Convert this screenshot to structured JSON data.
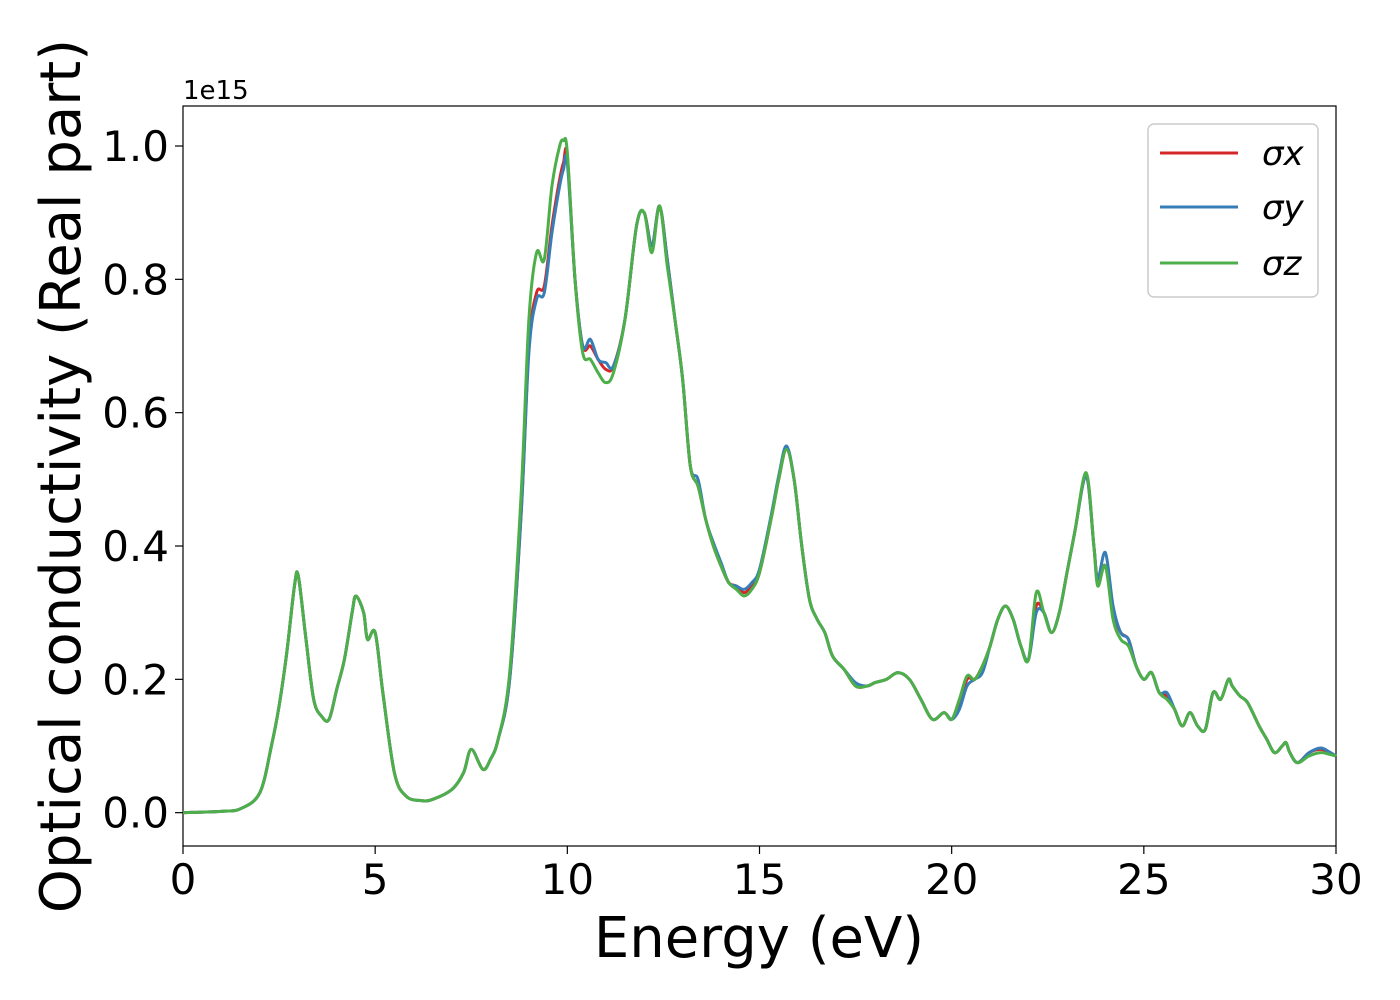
{
  "chart_data": {
    "type": "line",
    "xlabel": "Energy (eV)",
    "ylabel": "Optical conductivity (Real part)",
    "offset_text": "1e15",
    "xlim": [
      0,
      30
    ],
    "ylim": [
      -0.05,
      1.06
    ],
    "xticks": [
      0,
      5,
      10,
      15,
      20,
      25,
      30
    ],
    "yticks": [
      0.0,
      0.2,
      0.4,
      0.6,
      0.8,
      1.0
    ],
    "xtick_labels": [
      "0",
      "5",
      "10",
      "15",
      "20",
      "25",
      "30"
    ],
    "ytick_labels": [
      "0.0",
      "0.2",
      "0.4",
      "0.6",
      "0.8",
      "1.0"
    ],
    "legend_position": "top-right",
    "grid": false,
    "x": [
      0,
      1,
      1.5,
      2,
      2.3,
      2.5,
      2.7,
      2.9,
      3.0,
      3.2,
      3.4,
      3.6,
      3.8,
      4.0,
      4.2,
      4.4,
      4.5,
      4.7,
      4.8,
      5.0,
      5.2,
      5.5,
      5.8,
      6.2,
      6.5,
      7.0,
      7.3,
      7.5,
      7.8,
      8.0,
      8.2,
      8.5,
      8.8,
      9.0,
      9.2,
      9.4,
      9.6,
      9.8,
      9.9,
      10.0,
      10.2,
      10.4,
      10.6,
      10.8,
      11.0,
      11.2,
      11.5,
      11.8,
      12.0,
      12.2,
      12.4,
      12.6,
      12.8,
      13.0,
      13.2,
      13.4,
      13.6,
      13.8,
      14.0,
      14.2,
      14.4,
      14.6,
      14.8,
      15.0,
      15.3,
      15.5,
      15.7,
      15.9,
      16.1,
      16.3,
      16.5,
      16.7,
      16.9,
      17.2,
      17.5,
      17.8,
      18.0,
      18.3,
      18.6,
      18.9,
      19.2,
      19.5,
      19.8,
      20.0,
      20.2,
      20.4,
      20.6,
      20.8,
      21.0,
      21.2,
      21.4,
      21.6,
      21.8,
      22.0,
      22.2,
      22.4,
      22.6,
      22.8,
      23.0,
      23.2,
      23.5,
      23.7,
      23.8,
      24.0,
      24.2,
      24.4,
      24.6,
      24.8,
      25.0,
      25.2,
      25.4,
      25.6,
      25.8,
      26.0,
      26.2,
      26.4,
      26.6,
      26.8,
      27.0,
      27.2,
      27.3,
      27.5,
      27.7,
      28.0,
      28.2,
      28.4,
      28.6,
      28.7,
      28.8,
      29.0,
      29.3,
      29.6,
      29.8,
      30.0
    ],
    "series": [
      {
        "name": "σx",
        "color": "#d62728",
        "values": [
          0.0,
          0.002,
          0.006,
          0.03,
          0.1,
          0.16,
          0.24,
          0.34,
          0.355,
          0.26,
          0.17,
          0.145,
          0.14,
          0.185,
          0.23,
          0.3,
          0.325,
          0.3,
          0.26,
          0.27,
          0.18,
          0.06,
          0.025,
          0.018,
          0.02,
          0.035,
          0.06,
          0.095,
          0.065,
          0.08,
          0.11,
          0.2,
          0.45,
          0.7,
          0.78,
          0.79,
          0.88,
          0.95,
          0.975,
          0.985,
          0.8,
          0.7,
          0.7,
          0.68,
          0.665,
          0.67,
          0.74,
          0.88,
          0.9,
          0.85,
          0.91,
          0.83,
          0.74,
          0.65,
          0.52,
          0.49,
          0.44,
          0.4,
          0.37,
          0.345,
          0.34,
          0.33,
          0.34,
          0.36,
          0.44,
          0.5,
          0.545,
          0.5,
          0.4,
          0.32,
          0.29,
          0.27,
          0.235,
          0.215,
          0.19,
          0.19,
          0.195,
          0.2,
          0.21,
          0.2,
          0.17,
          0.14,
          0.15,
          0.14,
          0.16,
          0.2,
          0.2,
          0.22,
          0.25,
          0.29,
          0.31,
          0.29,
          0.25,
          0.23,
          0.31,
          0.3,
          0.27,
          0.3,
          0.36,
          0.42,
          0.505,
          0.4,
          0.35,
          0.37,
          0.3,
          0.27,
          0.26,
          0.22,
          0.2,
          0.21,
          0.18,
          0.175,
          0.155,
          0.13,
          0.15,
          0.13,
          0.125,
          0.18,
          0.17,
          0.2,
          0.19,
          0.175,
          0.165,
          0.13,
          0.11,
          0.09,
          0.1,
          0.105,
          0.09,
          0.075,
          0.09,
          0.095,
          0.09,
          0.085
        ]
      },
      {
        "name": "σy",
        "color": "#377eb8",
        "values": [
          0.0,
          0.002,
          0.006,
          0.03,
          0.1,
          0.16,
          0.24,
          0.34,
          0.355,
          0.26,
          0.17,
          0.145,
          0.14,
          0.185,
          0.23,
          0.3,
          0.325,
          0.3,
          0.26,
          0.27,
          0.18,
          0.06,
          0.025,
          0.018,
          0.02,
          0.035,
          0.06,
          0.095,
          0.065,
          0.08,
          0.11,
          0.2,
          0.45,
          0.69,
          0.77,
          0.78,
          0.87,
          0.94,
          0.965,
          0.975,
          0.8,
          0.7,
          0.71,
          0.68,
          0.675,
          0.67,
          0.74,
          0.88,
          0.9,
          0.85,
          0.91,
          0.83,
          0.74,
          0.65,
          0.52,
          0.5,
          0.44,
          0.405,
          0.375,
          0.345,
          0.34,
          0.335,
          0.345,
          0.365,
          0.445,
          0.505,
          0.55,
          0.5,
          0.4,
          0.32,
          0.29,
          0.27,
          0.235,
          0.215,
          0.195,
          0.19,
          0.195,
          0.2,
          0.21,
          0.2,
          0.17,
          0.14,
          0.15,
          0.14,
          0.155,
          0.19,
          0.2,
          0.21,
          0.25,
          0.29,
          0.31,
          0.29,
          0.25,
          0.23,
          0.3,
          0.3,
          0.27,
          0.3,
          0.36,
          0.42,
          0.505,
          0.4,
          0.35,
          0.39,
          0.31,
          0.27,
          0.26,
          0.22,
          0.2,
          0.21,
          0.18,
          0.18,
          0.155,
          0.13,
          0.15,
          0.13,
          0.125,
          0.18,
          0.17,
          0.2,
          0.19,
          0.175,
          0.165,
          0.13,
          0.11,
          0.09,
          0.1,
          0.105,
          0.09,
          0.075,
          0.09,
          0.097,
          0.092,
          0.085
        ]
      },
      {
        "name": "σz",
        "color": "#4daf4a",
        "values": [
          0.0,
          0.002,
          0.006,
          0.03,
          0.1,
          0.16,
          0.24,
          0.34,
          0.355,
          0.26,
          0.17,
          0.145,
          0.14,
          0.185,
          0.23,
          0.3,
          0.325,
          0.3,
          0.26,
          0.27,
          0.18,
          0.06,
          0.025,
          0.018,
          0.02,
          0.035,
          0.06,
          0.095,
          0.065,
          0.08,
          0.11,
          0.21,
          0.48,
          0.74,
          0.84,
          0.83,
          0.94,
          1.0,
          1.008,
          0.99,
          0.8,
          0.69,
          0.68,
          0.66,
          0.645,
          0.66,
          0.74,
          0.88,
          0.9,
          0.84,
          0.91,
          0.82,
          0.74,
          0.65,
          0.52,
          0.49,
          0.44,
          0.4,
          0.37,
          0.345,
          0.335,
          0.325,
          0.335,
          0.36,
          0.44,
          0.5,
          0.545,
          0.5,
          0.4,
          0.32,
          0.29,
          0.27,
          0.235,
          0.215,
          0.19,
          0.19,
          0.195,
          0.2,
          0.21,
          0.2,
          0.17,
          0.14,
          0.15,
          0.14,
          0.17,
          0.205,
          0.2,
          0.22,
          0.25,
          0.29,
          0.31,
          0.29,
          0.25,
          0.23,
          0.33,
          0.3,
          0.27,
          0.3,
          0.36,
          0.42,
          0.51,
          0.4,
          0.34,
          0.37,
          0.29,
          0.26,
          0.25,
          0.22,
          0.2,
          0.21,
          0.18,
          0.17,
          0.155,
          0.13,
          0.15,
          0.13,
          0.125,
          0.18,
          0.17,
          0.2,
          0.19,
          0.175,
          0.165,
          0.13,
          0.11,
          0.09,
          0.1,
          0.105,
          0.09,
          0.075,
          0.085,
          0.09,
          0.088,
          0.085
        ]
      }
    ]
  }
}
